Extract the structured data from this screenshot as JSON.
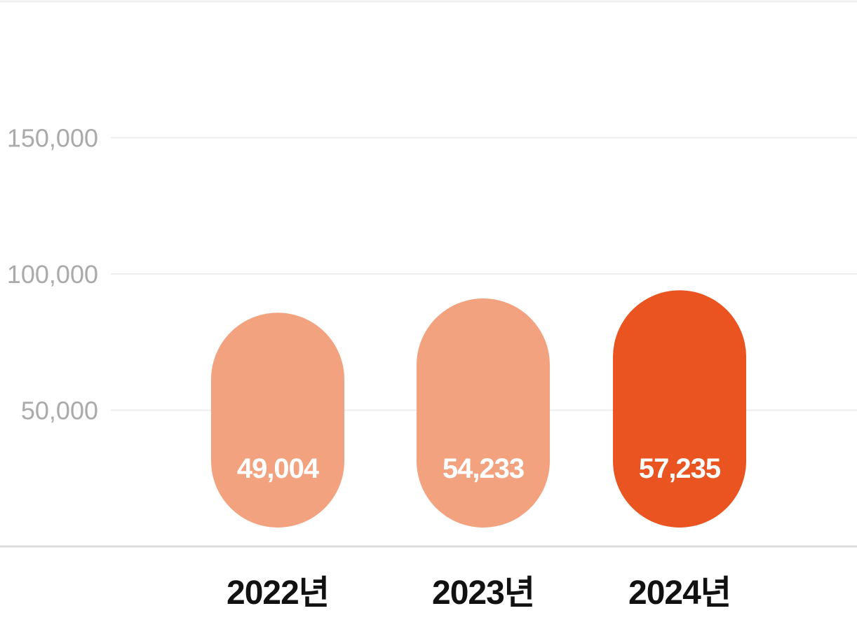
{
  "chart_data": {
    "type": "bar",
    "categories": [
      "2022년",
      "2023년",
      "2024년"
    ],
    "values": [
      49004,
      54233,
      57235
    ],
    "value_labels": [
      "49,004",
      "54,233",
      "57,235"
    ],
    "ylim": [
      0,
      200000
    ],
    "yticks": [
      50000,
      100000,
      150000
    ],
    "ytick_labels": [
      "50,000",
      "100,000",
      "150,000"
    ],
    "grid": true,
    "legend": "none",
    "colors": [
      "#f3a27f",
      "#f3a27f",
      "#e95420"
    ]
  },
  "colors": {
    "grid": "#eeeeee",
    "axis": "#dddddd",
    "tick_text": "#aaaaaa",
    "category_text": "#111111",
    "value_text": "#ffffff"
  }
}
